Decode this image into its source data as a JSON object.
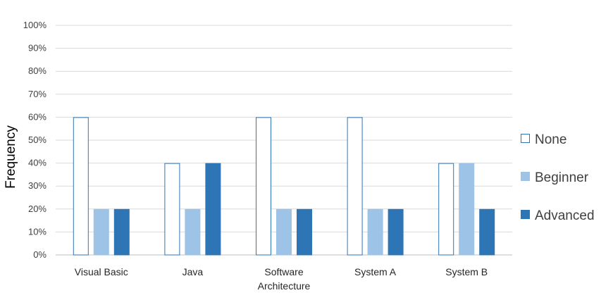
{
  "chart_data": {
    "type": "bar",
    "ylabel": "Frequency",
    "xlabel": "",
    "ylim": [
      0,
      100
    ],
    "y_ticks": [
      "0%",
      "10%",
      "20%",
      "30%",
      "40%",
      "50%",
      "60%",
      "70%",
      "80%",
      "90%",
      "100%"
    ],
    "grid": true,
    "legend_position": "right",
    "categories": [
      [
        "Visual Basic"
      ],
      [
        "Java"
      ],
      [
        "Software",
        "Architecture"
      ],
      [
        "System A"
      ],
      [
        "System B"
      ]
    ],
    "series": [
      {
        "name": "None",
        "values": [
          60,
          40,
          60,
          60,
          40
        ],
        "fill": "#ffffff",
        "stroke": "#2e75b6"
      },
      {
        "name": "Beginner",
        "values": [
          20,
          20,
          20,
          20,
          40
        ],
        "fill": "#9dc3e6",
        "stroke": "#9dc3e6"
      },
      {
        "name": "Advanced",
        "values": [
          20,
          40,
          20,
          20,
          20
        ],
        "fill": "#2e75b6",
        "stroke": "#2e75b6"
      }
    ]
  }
}
